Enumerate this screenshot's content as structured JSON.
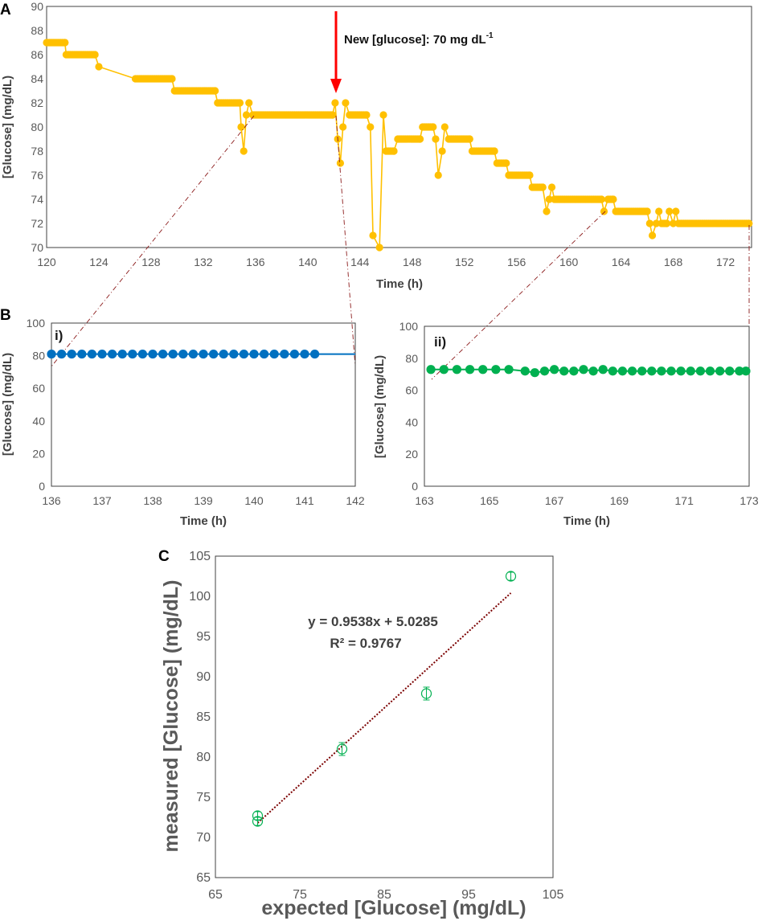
{
  "figure": {
    "panel_a_label": "A",
    "panel_b_label": "B",
    "panel_c_label": "C",
    "annotation": "New [glucose]: 70 mg dL",
    "annotation_sup": "-1",
    "equation": "y = 0.9538x + 5.0285",
    "r_squared": "R² = 0.9767"
  },
  "colors": {
    "yellow": "#FFC000",
    "blue": "#0070C0",
    "green": "#00B050",
    "arrow": "#FF0000",
    "zoom": "#8B1A1A",
    "fit": "#7B0000"
  },
  "chart_data": [
    {
      "id": "A",
      "type": "line",
      "xlabel": "Time (h)",
      "ylabel": "[Glucose] (mg/dL)",
      "xlim": [
        120,
        174
      ],
      "ylim": [
        70,
        90
      ],
      "xticks": [
        "120",
        "124",
        "128",
        "132",
        "136",
        "140",
        "144",
        "148",
        "152",
        "156",
        "160",
        "164",
        "168",
        "172"
      ],
      "yticks": [
        "70",
        "72",
        "74",
        "76",
        "78",
        "80",
        "82",
        "84",
        "86",
        "88",
        "90"
      ],
      "series": [
        {
          "name": "glucose",
          "points": [
            [
              120,
              87
            ],
            [
              121.4,
              87
            ],
            [
              121.5,
              86
            ],
            [
              123.7,
              86
            ],
            [
              124,
              85
            ],
            [
              126.8,
              84
            ],
            [
              129.6,
              84
            ],
            [
              129.8,
              83
            ],
            [
              132.9,
              83
            ],
            [
              133.1,
              82
            ],
            [
              134.8,
              82
            ],
            [
              134.9,
              80
            ],
            [
              135.1,
              78
            ],
            [
              135.3,
              81
            ],
            [
              135.5,
              82
            ],
            [
              135.8,
              81
            ],
            [
              141.9,
              81
            ],
            [
              142.1,
              82
            ],
            [
              142.3,
              79
            ],
            [
              142.5,
              77
            ],
            [
              142.7,
              80
            ],
            [
              142.9,
              82
            ],
            [
              143.2,
              81
            ],
            [
              144.5,
              81
            ],
            [
              144.8,
              80
            ],
            [
              145.0,
              71
            ],
            [
              145.5,
              70
            ],
            [
              145.8,
              81
            ],
            [
              146.0,
              78
            ],
            [
              146.6,
              78
            ],
            [
              146.9,
              79
            ],
            [
              148.6,
              79
            ],
            [
              148.8,
              80
            ],
            [
              149.6,
              80
            ],
            [
              149.8,
              79
            ],
            [
              150.0,
              76
            ],
            [
              150.3,
              78
            ],
            [
              150.5,
              80
            ],
            [
              150.8,
              79
            ],
            [
              152.4,
              79
            ],
            [
              152.6,
              78
            ],
            [
              154.3,
              78
            ],
            [
              154.5,
              77
            ],
            [
              155.2,
              77
            ],
            [
              155.4,
              76
            ],
            [
              157.0,
              76
            ],
            [
              157.2,
              75
            ],
            [
              158.0,
              75
            ],
            [
              158.3,
              73
            ],
            [
              158.5,
              74
            ],
            [
              158.7,
              75
            ],
            [
              158.9,
              74
            ],
            [
              162.5,
              74
            ],
            [
              162.7,
              73
            ],
            [
              163.0,
              74
            ],
            [
              163.4,
              74
            ],
            [
              163.6,
              73
            ],
            [
              166.0,
              73
            ],
            [
              166.2,
              72
            ],
            [
              166.4,
              71
            ],
            [
              166.7,
              72
            ],
            [
              166.9,
              73
            ],
            [
              167.1,
              72
            ],
            [
              167.5,
              72
            ],
            [
              167.7,
              73
            ],
            [
              168.0,
              72
            ],
            [
              168.2,
              73
            ],
            [
              168.4,
              72
            ],
            [
              173.8,
              72
            ]
          ]
        }
      ],
      "arrow_at": {
        "x": 142,
        "y_from": 90,
        "y_to": 82
      }
    },
    {
      "id": "B-i",
      "type": "line",
      "inset_label": "i)",
      "xlabel": "Time (h)",
      "ylabel": "[Glucose] (mg/dL)",
      "xlim": [
        136,
        142
      ],
      "ylim": [
        0,
        100
      ],
      "xticks": [
        "136",
        "137",
        "138",
        "139",
        "140",
        "141",
        "142"
      ],
      "yticks": [
        "0",
        "20",
        "40",
        "60",
        "80",
        "100"
      ],
      "series": [
        {
          "name": "glucose",
          "x_start": 136,
          "x_step": 0.2,
          "count": 27,
          "value": 81
        }
      ]
    },
    {
      "id": "B-ii",
      "type": "line",
      "inset_label": "ii)",
      "xlabel": "Time (h)",
      "ylabel": "[Glucose] (mg/dL)",
      "xlim": [
        163,
        173
      ],
      "ylim": [
        0,
        100
      ],
      "xticks": [
        "163",
        "165",
        "167",
        "169",
        "171",
        "173"
      ],
      "yticks": [
        "0",
        "20",
        "40",
        "60",
        "80",
        "100"
      ],
      "series": [
        {
          "name": "glucose",
          "points": [
            [
              163.2,
              73
            ],
            [
              163.6,
              73
            ],
            [
              164.0,
              73
            ],
            [
              164.4,
              73
            ],
            [
              164.8,
              73
            ],
            [
              165.2,
              73
            ],
            [
              165.6,
              73
            ],
            [
              166.1,
              72
            ],
            [
              166.4,
              71
            ],
            [
              166.7,
              72
            ],
            [
              167.0,
              73
            ],
            [
              167.3,
              72
            ],
            [
              167.6,
              72
            ],
            [
              167.9,
              73
            ],
            [
              168.2,
              72
            ],
            [
              168.5,
              73
            ],
            [
              168.8,
              72
            ],
            [
              169.1,
              72
            ],
            [
              169.4,
              72
            ],
            [
              169.7,
              72
            ],
            [
              170.0,
              72
            ],
            [
              170.3,
              72
            ],
            [
              170.6,
              72
            ],
            [
              170.9,
              72
            ],
            [
              171.2,
              72
            ],
            [
              171.5,
              72
            ],
            [
              171.8,
              72
            ],
            [
              172.1,
              72
            ],
            [
              172.4,
              72
            ],
            [
              172.7,
              72
            ],
            [
              172.9,
              72
            ]
          ]
        }
      ]
    },
    {
      "id": "C",
      "type": "scatter",
      "xlabel": "expected [Glucose] (mg/dL)",
      "ylabel": "measured [Glucose] (mg/dL)",
      "xlim": [
        65,
        105
      ],
      "ylim": [
        65,
        105
      ],
      "xticks": [
        "65",
        "75",
        "85",
        "95",
        "105"
      ],
      "yticks": [
        "65",
        "70",
        "75",
        "80",
        "85",
        "90",
        "95",
        "100",
        "105"
      ],
      "points": [
        {
          "x": 70,
          "y": 72.7,
          "err": 0.5
        },
        {
          "x": 70,
          "y": 72.0,
          "err": 0.5
        },
        {
          "x": 80,
          "y": 81.0,
          "err": 0.8
        },
        {
          "x": 90,
          "y": 87.9,
          "err": 0.8
        },
        {
          "x": 100,
          "y": 102.5,
          "err": 0.5
        }
      ],
      "trendline": {
        "slope": 0.9538,
        "intercept": 5.0285,
        "x_range": [
          70,
          100
        ]
      }
    }
  ]
}
